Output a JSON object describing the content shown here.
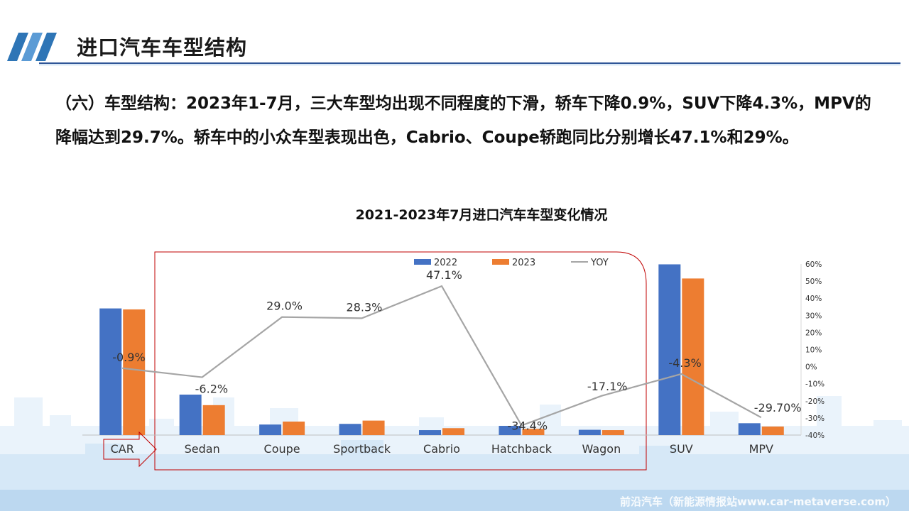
{
  "header": {
    "title": "进口汽车车型结构"
  },
  "summary": {
    "text": "（六）车型结构：2023年1-7月，三大车型均出现不同程度的下滑，轿车下降0.9%，SUV下降4.3%，MPV的降幅达到29.7%。轿车中的小众车型表现出色，Cabrio、Coupe轿跑同比分别增长47.1%和29%。"
  },
  "watermark": "前沿汽车（新能源情报站www.car-metaverse.com）",
  "colors": {
    "series_2022": "#4472c4",
    "series_2023": "#ed7d31",
    "yoy_line": "#a5a5a5",
    "highlight_box": "#c00000",
    "title_rule": "#2f5597"
  },
  "chart_data": {
    "type": "bar",
    "title": "2021-2023年7月进口汽车车型变化情况",
    "categories": [
      "CAR",
      "Sedan",
      "Coupe",
      "Sportback",
      "Cabrio",
      "Hatchback",
      "Wagon",
      "SUV",
      "MPV"
    ],
    "series": [
      {
        "name": "2022",
        "values": [
          38.5,
          12.3,
          3.2,
          3.4,
          1.5,
          2.8,
          1.6,
          51.9,
          3.6
        ]
      },
      {
        "name": "2023",
        "values": [
          38.2,
          9.1,
          4.1,
          4.4,
          2.1,
          1.9,
          1.5,
          47.6,
          2.6
        ]
      }
    ],
    "yoy": {
      "name": "YOY",
      "values": [
        -0.9,
        -6.2,
        29.0,
        28.3,
        47.1,
        -34.4,
        -17.1,
        -4.3,
        -29.7
      ],
      "labels": [
        "-0.9%",
        "-6.2%",
        "29.0%",
        "28.3%",
        "47.1%",
        "-34.4%",
        "-17.1%",
        "-4.3%",
        "-29.70%"
      ]
    },
    "y_left_range": [
      0,
      52
    ],
    "y_right_range": [
      -40,
      60
    ],
    "y_right_ticks": [
      "60%",
      "50%",
      "40%",
      "30%",
      "20%",
      "10%",
      "0%",
      "-10%",
      "-20%",
      "-30%",
      "-40%"
    ],
    "legend_position": "top",
    "grid": false
  }
}
